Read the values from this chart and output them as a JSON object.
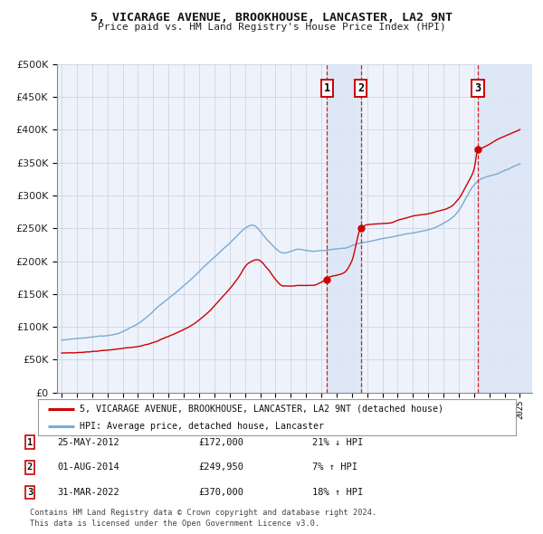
{
  "title1": "5, VICARAGE AVENUE, BROOKHOUSE, LANCASTER, LA2 9NT",
  "title2": "Price paid vs. HM Land Registry's House Price Index (HPI)",
  "legend1": "5, VICARAGE AVENUE, BROOKHOUSE, LANCASTER, LA2 9NT (detached house)",
  "legend2": "HPI: Average price, detached house, Lancaster",
  "footnote1": "Contains HM Land Registry data © Crown copyright and database right 2024.",
  "footnote2": "This data is licensed under the Open Government Licence v3.0.",
  "transactions": [
    {
      "num": 1,
      "date": "25-MAY-2012",
      "price": 172000,
      "price_str": "£172,000",
      "pct": "21%",
      "dir": "↓",
      "tx_x": 2012.38
    },
    {
      "num": 2,
      "date": "01-AUG-2014",
      "price": 249950,
      "price_str": "£249,950",
      "pct": "7%",
      "dir": "↑",
      "tx_x": 2014.58
    },
    {
      "num": 3,
      "date": "31-MAR-2022",
      "price": 370000,
      "price_str": "£370,000",
      "pct": "18%",
      "dir": "↑",
      "tx_x": 2022.25
    }
  ],
  "red_color": "#cc0000",
  "blue_color": "#7aaad0",
  "bg_color": "#eef2fb",
  "grid_color": "#c8cfe0",
  "vspan_color": "#dce6f5",
  "ylim": [
    0,
    500000
  ],
  "xlim_start": 1994.7,
  "xlim_end": 2025.8,
  "start_year": 1995,
  "end_year": 2025
}
